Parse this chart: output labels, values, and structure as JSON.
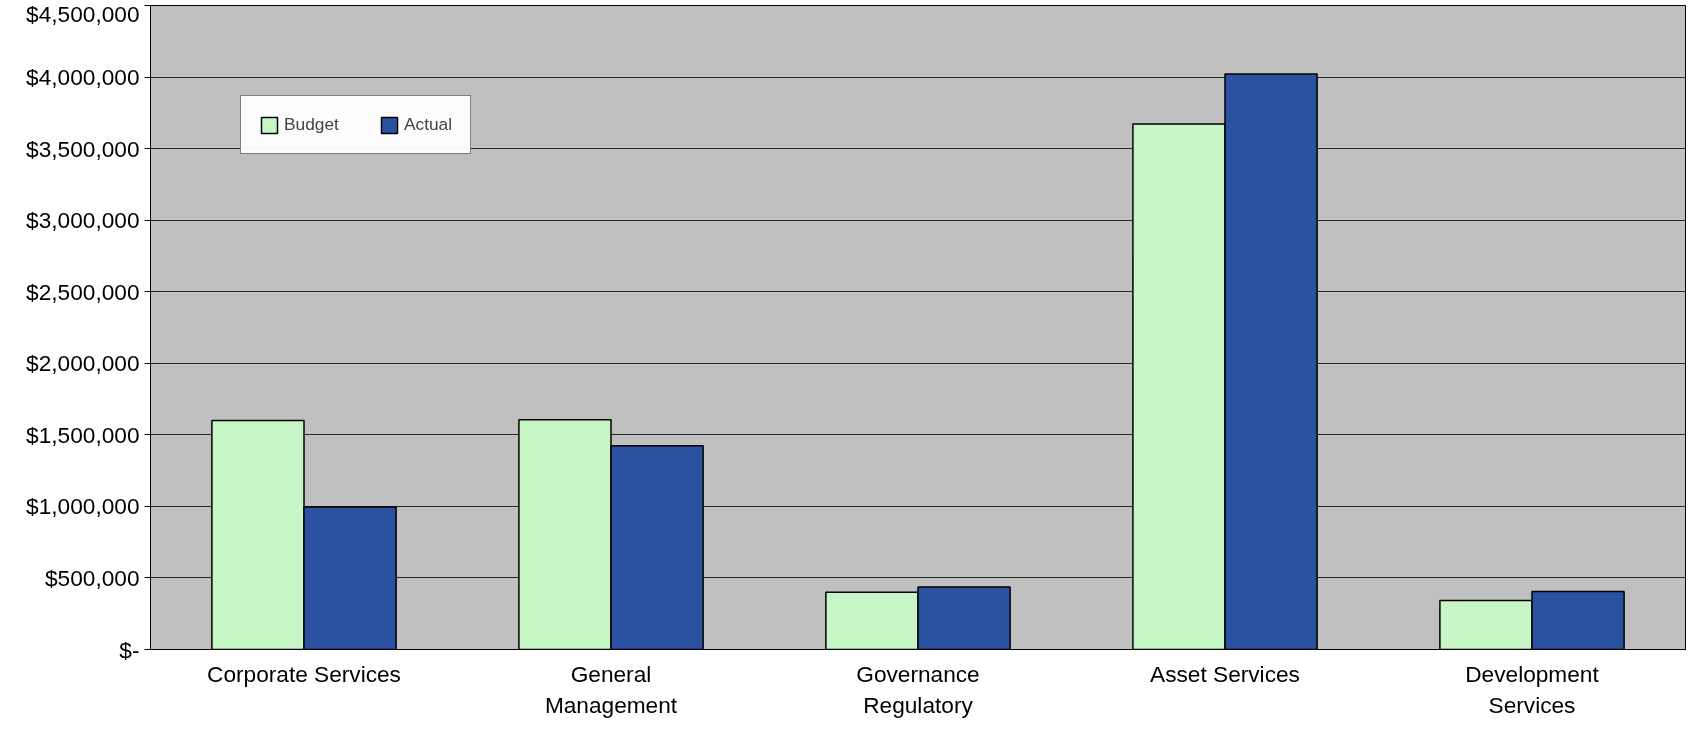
{
  "chart_data": {
    "type": "bar",
    "categories": [
      "Corporate Services",
      "General\nManagement",
      "Governance\nRegulatory",
      "Asset Services",
      "Development\nServices"
    ],
    "series": [
      {
        "name": "Budget",
        "color": "#c6f5c6",
        "values": [
          1600000,
          1605000,
          400000,
          3672000,
          342000
        ]
      },
      {
        "name": "Actual",
        "color": "#2a52a0",
        "values": [
          995000,
          1423000,
          437000,
          4022000,
          405000
        ]
      }
    ],
    "ylim": [
      0,
      4500000
    ],
    "yticks": [
      {
        "value": 0,
        "label": "$-"
      },
      {
        "value": 500000,
        "label": "$500,000"
      },
      {
        "value": 1000000,
        "label": "$1,000,000"
      },
      {
        "value": 1500000,
        "label": "$1,500,000"
      },
      {
        "value": 2000000,
        "label": "$2,000,000"
      },
      {
        "value": 2500000,
        "label": "$2,500,000"
      },
      {
        "value": 3000000,
        "label": "$3,000,000"
      },
      {
        "value": 3500000,
        "label": "$3,500,000"
      },
      {
        "value": 4000000,
        "label": "$4,000,000"
      },
      {
        "value": 4500000,
        "label": "$4,500,000"
      }
    ],
    "grid": "y",
    "legend": "top left"
  }
}
